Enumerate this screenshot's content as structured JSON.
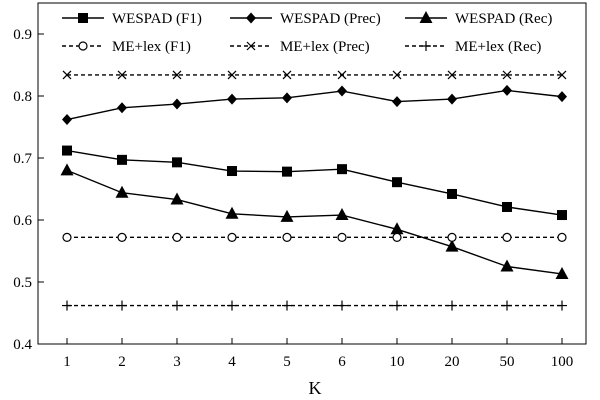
{
  "chart_data": {
    "type": "line",
    "title": "",
    "xlabel": "K",
    "ylabel": "",
    "categories": [
      "1",
      "2",
      "3",
      "4",
      "5",
      "6",
      "10",
      "20",
      "50",
      "100"
    ],
    "ylim": [
      0.4,
      0.9
    ],
    "yticks": [
      "0.4",
      "0.5",
      "0.6",
      "0.7",
      "0.8",
      "0.9"
    ],
    "grid": false,
    "legend_position": "top",
    "series": [
      {
        "name": "WESPAD (F1)",
        "marker": "square",
        "dash": "solid",
        "values": [
          0.712,
          0.697,
          0.693,
          0.679,
          0.678,
          0.682,
          0.661,
          0.642,
          0.621,
          0.608
        ]
      },
      {
        "name": "WESPAD (Prec)",
        "marker": "diamond",
        "dash": "solid",
        "values": [
          0.762,
          0.781,
          0.787,
          0.795,
          0.797,
          0.808,
          0.791,
          0.795,
          0.809,
          0.799
        ]
      },
      {
        "name": "WESPAD (Rec)",
        "marker": "triangle",
        "dash": "solid",
        "values": [
          0.68,
          0.644,
          0.633,
          0.61,
          0.605,
          0.608,
          0.585,
          0.557,
          0.525,
          0.513
        ]
      },
      {
        "name": "ME+lex (F1)",
        "marker": "circle-open",
        "dash": "dashed",
        "values": [
          0.572,
          0.572,
          0.572,
          0.572,
          0.572,
          0.572,
          0.572,
          0.572,
          0.572,
          0.572
        ]
      },
      {
        "name": "ME+lex (Prec)",
        "marker": "x",
        "dash": "dashed",
        "values": [
          0.834,
          0.834,
          0.834,
          0.834,
          0.834,
          0.834,
          0.834,
          0.834,
          0.834,
          0.834
        ]
      },
      {
        "name": "ME+lex (Rec)",
        "marker": "plus",
        "dash": "dashed",
        "values": [
          0.462,
          0.462,
          0.462,
          0.462,
          0.462,
          0.462,
          0.462,
          0.462,
          0.462,
          0.462
        ]
      }
    ]
  }
}
